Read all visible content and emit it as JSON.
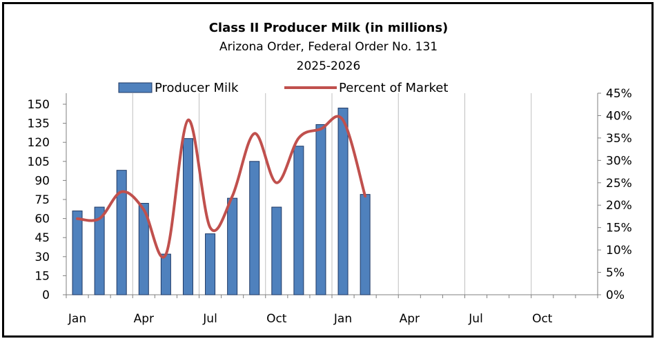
{
  "chart_data": {
    "type": "bar",
    "title": "Class II Producer Milk (in millions)",
    "subtitle_lines": [
      "Arizona Order, Federal Order No. 131",
      "2025-2026"
    ],
    "x_tick_labels": [
      "Jan",
      "Apr",
      "Jul",
      "Oct",
      "Jan",
      "Apr",
      "Jul",
      "Oct"
    ],
    "months_axis": 24,
    "y_left": {
      "min": 0,
      "max": 150,
      "step": 15,
      "tick_labels": [
        "0",
        "15",
        "30",
        "45",
        "60",
        "75",
        "90",
        "105",
        "120",
        "135",
        "150"
      ]
    },
    "y_right": {
      "min": 0,
      "max": 45,
      "step": 5,
      "tick_labels": [
        "0%",
        "5%",
        "10%",
        "15%",
        "20%",
        "25%",
        "30%",
        "35%",
        "40%",
        "45%"
      ]
    },
    "series": [
      {
        "name": "Producer Milk",
        "kind": "bar",
        "axis": "left",
        "color": "#4F81BD",
        "border": "#1F3864",
        "values": [
          66,
          69,
          98,
          72,
          32,
          123,
          48,
          76,
          105,
          69,
          117,
          134,
          147,
          79
        ]
      },
      {
        "name": "Percent of Market",
        "kind": "line",
        "axis": "right",
        "color": "#C0504D",
        "values": [
          17,
          17,
          23,
          19,
          9,
          39,
          15,
          22,
          36,
          25,
          35,
          37,
          39,
          22
        ]
      }
    ],
    "legend_position": "top",
    "grid": "vertical"
  }
}
